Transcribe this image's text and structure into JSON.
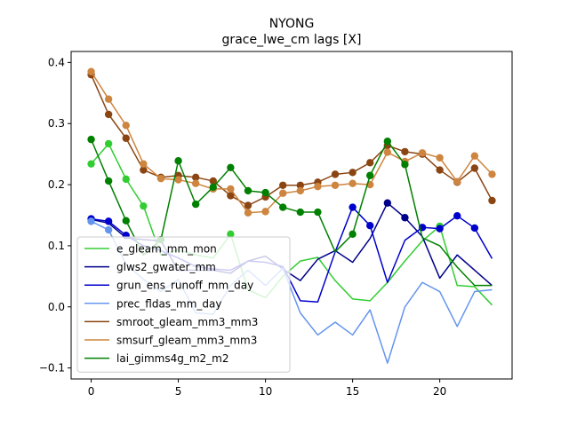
{
  "chart_data": {
    "type": "line",
    "title": "NYONG",
    "subtitle": "grace_lwe_cm lags [X]",
    "xlabel": "",
    "ylabel": "",
    "xlim": [
      -1.15,
      24.15
    ],
    "ylim": [
      -0.118,
      0.418
    ],
    "xticks": [
      0,
      5,
      10,
      15,
      20
    ],
    "yticks": [
      -0.1,
      0.0,
      0.1,
      0.2,
      0.3,
      0.4
    ],
    "ytick_labels": [
      "−0.1",
      "0.0",
      "0.1",
      "0.2",
      "0.3",
      "0.4"
    ],
    "legend_position": "lower-left",
    "series": [
      {
        "name": "e_gleam_mm_mon",
        "color": "#32cd32",
        "x": [
          0,
          1,
          2,
          3,
          4,
          5,
          6,
          7,
          8,
          9,
          10,
          11,
          12,
          13,
          14,
          15,
          16,
          17,
          18,
          19,
          20,
          21,
          22,
          23
        ],
        "values": [
          0.234,
          0.267,
          0.209,
          0.165,
          0.085,
          0.093,
          0.085,
          0.08,
          0.119,
          0.028,
          0.015,
          0.05,
          0.075,
          0.081,
          0.043,
          0.013,
          0.01,
          0.04,
          0.075,
          0.108,
          0.132,
          0.035,
          0.033,
          0.003
        ],
        "markers": [
          0,
          1,
          2,
          3,
          8,
          20
        ]
      },
      {
        "name": "glws2_gwater_mm",
        "color": "#00008b",
        "x": [
          0,
          1,
          2,
          3,
          4,
          5,
          6,
          7,
          8,
          9,
          10,
          11,
          12,
          13,
          14,
          15,
          16,
          17,
          18,
          19,
          20,
          21,
          22,
          23
        ],
        "values": [
          0.143,
          0.137,
          0.113,
          0.11,
          0.108,
          0.06,
          0.06,
          0.06,
          0.055,
          0.075,
          0.083,
          0.062,
          0.043,
          0.078,
          0.092,
          0.073,
          0.112,
          0.17,
          0.146,
          0.115,
          0.047,
          0.085,
          0.06,
          0.035
        ],
        "markers": [
          17,
          18
        ]
      },
      {
        "name": "grun_ens_runoff_mm_day",
        "color": "#0000cd",
        "x": [
          0,
          1,
          2,
          3,
          4,
          5,
          6,
          7,
          8,
          9,
          10,
          11,
          12,
          13,
          14,
          15,
          16,
          17,
          18,
          19,
          20,
          21,
          22,
          23
        ],
        "values": [
          0.144,
          0.14,
          0.117,
          0.1,
          0.092,
          0.08,
          0.066,
          0.062,
          0.06,
          0.075,
          0.073,
          0.066,
          0.01,
          0.008,
          0.09,
          0.163,
          0.133,
          0.04,
          0.109,
          0.13,
          0.128,
          0.149,
          0.129,
          0.079
        ],
        "markers": [
          0,
          1,
          2,
          15,
          16,
          19,
          20,
          21,
          22
        ]
      },
      {
        "name": "prec_fldas_mm_day",
        "color": "#6495ed",
        "x": [
          0,
          1,
          2,
          3,
          4,
          5,
          6,
          7,
          8,
          9,
          10,
          11,
          12,
          13,
          14,
          15,
          16,
          17,
          18,
          19,
          20,
          21,
          22,
          23
        ],
        "values": [
          0.14,
          0.126,
          0.07,
          0.045,
          0.025,
          0.045,
          -0.01,
          -0.012,
          0.035,
          0.06,
          0.035,
          0.063,
          -0.01,
          -0.046,
          -0.025,
          -0.046,
          -0.005,
          -0.092,
          0.0,
          0.04,
          0.025,
          -0.032,
          0.025,
          0.028
        ],
        "markers": [
          0,
          1
        ]
      },
      {
        "name": "smroot_gleam_mm3_mm3",
        "color": "#8b4513",
        "x": [
          0,
          1,
          2,
          3,
          4,
          5,
          6,
          7,
          8,
          9,
          10,
          11,
          12,
          13,
          14,
          15,
          16,
          17,
          18,
          19,
          20,
          21,
          22,
          23
        ],
        "values": [
          0.38,
          0.315,
          0.276,
          0.224,
          0.212,
          0.215,
          0.212,
          0.206,
          0.182,
          0.166,
          0.18,
          0.199,
          0.199,
          0.204,
          0.217,
          0.22,
          0.236,
          0.264,
          0.254,
          0.25,
          0.224,
          0.204,
          0.227,
          0.174
        ],
        "markers": [
          0,
          1,
          2,
          3,
          4,
          5,
          6,
          7,
          8,
          9,
          10,
          11,
          12,
          13,
          14,
          15,
          16,
          17,
          18,
          19,
          20,
          21,
          22,
          23
        ]
      },
      {
        "name": "smsurf_gleam_mm3_mm3",
        "color": "#cd853f",
        "x": [
          0,
          1,
          2,
          3,
          4,
          5,
          6,
          7,
          8,
          9,
          10,
          11,
          12,
          13,
          14,
          15,
          16,
          17,
          18,
          19,
          20,
          21,
          22,
          23
        ],
        "values": [
          0.385,
          0.34,
          0.297,
          0.234,
          0.21,
          0.208,
          0.202,
          0.193,
          0.193,
          0.154,
          0.156,
          0.186,
          0.19,
          0.197,
          0.199,
          0.202,
          0.2,
          0.253,
          0.238,
          0.252,
          0.244,
          0.205,
          0.247,
          0.217
        ],
        "markers": [
          0,
          1,
          2,
          3,
          4,
          5,
          6,
          7,
          8,
          9,
          10,
          11,
          12,
          13,
          14,
          15,
          16,
          17,
          18,
          19,
          20,
          21,
          22,
          23
        ]
      },
      {
        "name": "lai_gimms4g_m2_m2",
        "color": "#008000",
        "x": [
          0,
          1,
          2,
          3,
          4,
          5,
          6,
          7,
          8,
          9,
          10,
          11,
          12,
          13,
          14,
          15,
          16,
          17,
          18,
          19,
          20,
          21,
          22,
          23
        ],
        "values": [
          0.274,
          0.206,
          0.141,
          0.085,
          0.11,
          0.239,
          0.168,
          0.196,
          0.228,
          0.19,
          0.187,
          0.163,
          0.155,
          0.155,
          0.09,
          0.119,
          0.215,
          0.271,
          0.233,
          0.113,
          0.1,
          0.065,
          0.035,
          0.035
        ],
        "markers": [
          0,
          1,
          2,
          4,
          5,
          6,
          7,
          8,
          9,
          10,
          11,
          12,
          13,
          15,
          16,
          17,
          18
        ]
      }
    ]
  }
}
